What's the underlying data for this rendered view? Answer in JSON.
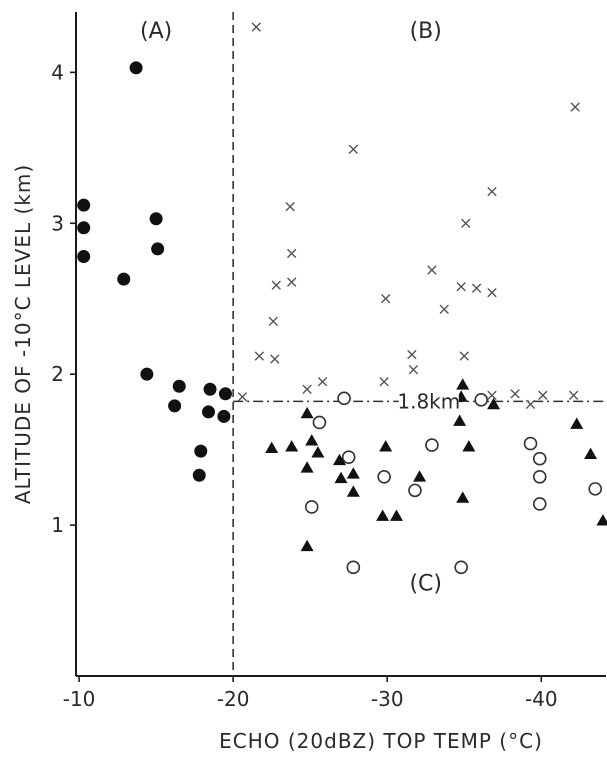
{
  "chart_data": {
    "type": "scatter",
    "xlabel": "ECHO (20dBZ) TOP  TEMP (°C)",
    "ylabel": "ALTITUDE OF -10°C LEVEL (km)",
    "xlim": [
      -9.8,
      -44.2
    ],
    "ylim": [
      0,
      4.4
    ],
    "x_ticks": [
      -10,
      -20,
      -30,
      -40
    ],
    "y_ticks": [
      1,
      2,
      3,
      4
    ],
    "divider_x": -20,
    "threshold_y": 1.82,
    "threshold_label": "1.8km",
    "region_labels": [
      {
        "text": "(A)",
        "x": -15,
        "y": 4.28
      },
      {
        "text": "(B)",
        "x": -32.5,
        "y": 4.28
      },
      {
        "text": "(C)",
        "x": -32.5,
        "y": 0.62
      }
    ],
    "series": [
      {
        "marker": "filled-circle",
        "points": [
          [
            -10.3,
            3.12
          ],
          [
            -10.3,
            2.97
          ],
          [
            -10.3,
            2.78
          ],
          [
            -13.7,
            4.03
          ],
          [
            -15,
            3.03
          ],
          [
            -15.1,
            2.83
          ],
          [
            -12.9,
            2.63
          ],
          [
            -14.4,
            2.0
          ],
          [
            -16.5,
            1.92
          ],
          [
            -16.2,
            1.79
          ],
          [
            -18.5,
            1.9
          ],
          [
            -18.4,
            1.75
          ],
          [
            -19.5,
            1.87
          ],
          [
            -19.4,
            1.72
          ],
          [
            -17.9,
            1.49
          ],
          [
            -17.8,
            1.33
          ]
        ]
      },
      {
        "marker": "x",
        "points": [
          [
            -21.5,
            4.3
          ],
          [
            -27.8,
            3.49
          ],
          [
            -42.2,
            3.77
          ],
          [
            -23.7,
            3.11
          ],
          [
            -23.8,
            2.8
          ],
          [
            -22.8,
            2.59
          ],
          [
            -23.8,
            2.61
          ],
          [
            -22.6,
            2.35
          ],
          [
            -21.7,
            2.12
          ],
          [
            -22.7,
            2.1
          ],
          [
            -20.6,
            1.85
          ],
          [
            -24.8,
            1.9
          ],
          [
            -25.8,
            1.95
          ],
          [
            -29.9,
            2.5
          ],
          [
            -29.8,
            1.95
          ],
          [
            -31.6,
            2.13
          ],
          [
            -31.7,
            2.03
          ],
          [
            -32.9,
            2.69
          ],
          [
            -33.7,
            2.43
          ],
          [
            -34.8,
            2.58
          ],
          [
            -35.1,
            3.0
          ],
          [
            -35.8,
            2.57
          ],
          [
            -36.8,
            2.54
          ],
          [
            -36.8,
            3.21
          ],
          [
            -35,
            2.12
          ],
          [
            -38.3,
            1.87
          ],
          [
            -39.3,
            1.8
          ],
          [
            -40.1,
            1.86
          ],
          [
            -42.1,
            1.86
          ],
          [
            -36.8,
            1.86
          ]
        ]
      },
      {
        "marker": "open-circle",
        "points": [
          [
            -25.6,
            1.68
          ],
          [
            -27.2,
            1.84
          ],
          [
            -27.5,
            1.45
          ],
          [
            -25.1,
            1.12
          ],
          [
            -29.8,
            1.32
          ],
          [
            -27.8,
            0.72
          ],
          [
            -31.8,
            1.23
          ],
          [
            -32.9,
            1.53
          ],
          [
            -34.8,
            0.72
          ],
          [
            -36.1,
            1.83
          ],
          [
            -39.3,
            1.54
          ],
          [
            -39.9,
            1.44
          ],
          [
            -39.9,
            1.32
          ],
          [
            -39.9,
            1.14
          ],
          [
            -43.5,
            1.24
          ]
        ]
      },
      {
        "marker": "filled-triangle",
        "points": [
          [
            -22.5,
            1.51
          ],
          [
            -23.8,
            1.52
          ],
          [
            -24.8,
            1.74
          ],
          [
            -25.1,
            1.56
          ],
          [
            -25.5,
            1.48
          ],
          [
            -24.8,
            1.38
          ],
          [
            -24.8,
            0.86
          ],
          [
            -26.9,
            1.43
          ],
          [
            -27,
            1.31
          ],
          [
            -27.8,
            1.34
          ],
          [
            -27.8,
            1.22
          ],
          [
            -29.9,
            1.52
          ],
          [
            -29.7,
            1.06
          ],
          [
            -30.6,
            1.06
          ],
          [
            -32.1,
            1.32
          ],
          [
            -34.9,
            1.93
          ],
          [
            -34.8,
            1.85
          ],
          [
            -34.7,
            1.69
          ],
          [
            -35.3,
            1.52
          ],
          [
            -34.9,
            1.18
          ],
          [
            -36.9,
            1.8
          ],
          [
            -42.3,
            1.67
          ],
          [
            -43.2,
            1.47
          ],
          [
            -44,
            1.03
          ]
        ]
      }
    ]
  }
}
